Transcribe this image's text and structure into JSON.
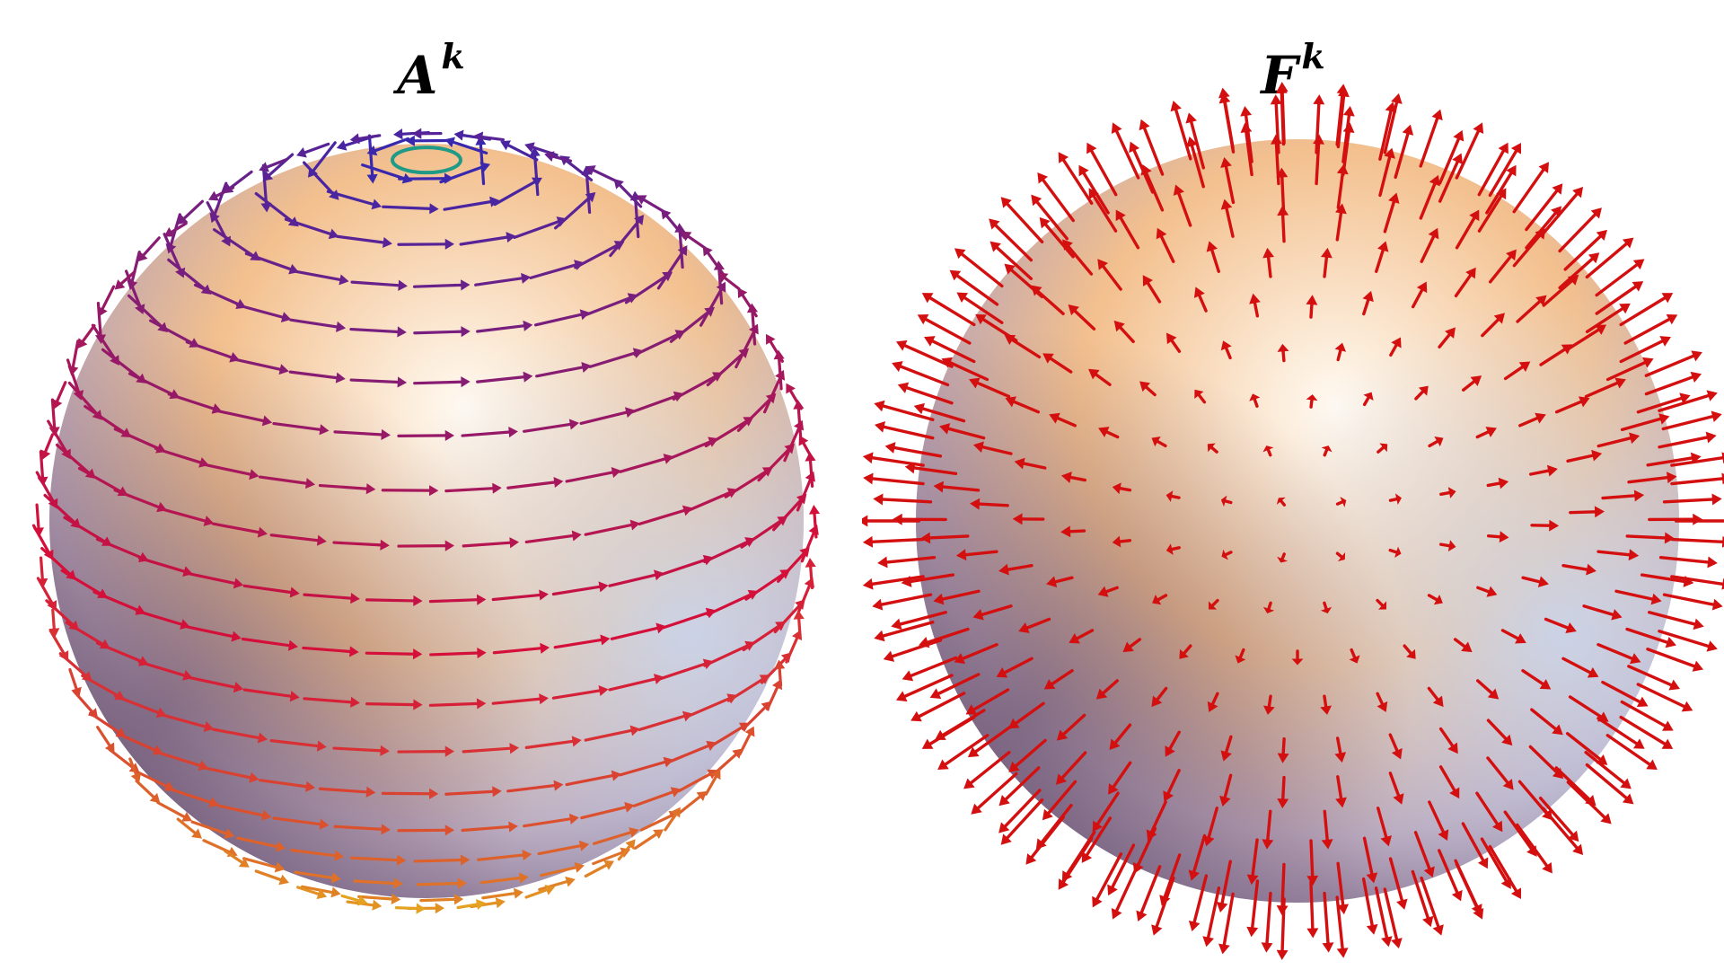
{
  "panels": [
    {
      "id": "left",
      "field": "circulating",
      "title_base": "A",
      "title_sup": "k"
    },
    {
      "id": "right",
      "field": "radial",
      "title_base": "F",
      "title_sup": "k"
    }
  ],
  "colors": {
    "sphere_highlight": "#fffaf2",
    "sphere_warm": "#f3c08e",
    "sphere_cool": "#c9d6ee",
    "sphere_shadow": "#6e5c82",
    "arrow_radial": "#d40f0f",
    "arrow_gradient_top": "#2a2ab8",
    "arrow_gradient_mid": "#d4103a",
    "arrow_gradient_bottom": "#e8c21a",
    "pole_ring": "#1f9a86"
  }
}
